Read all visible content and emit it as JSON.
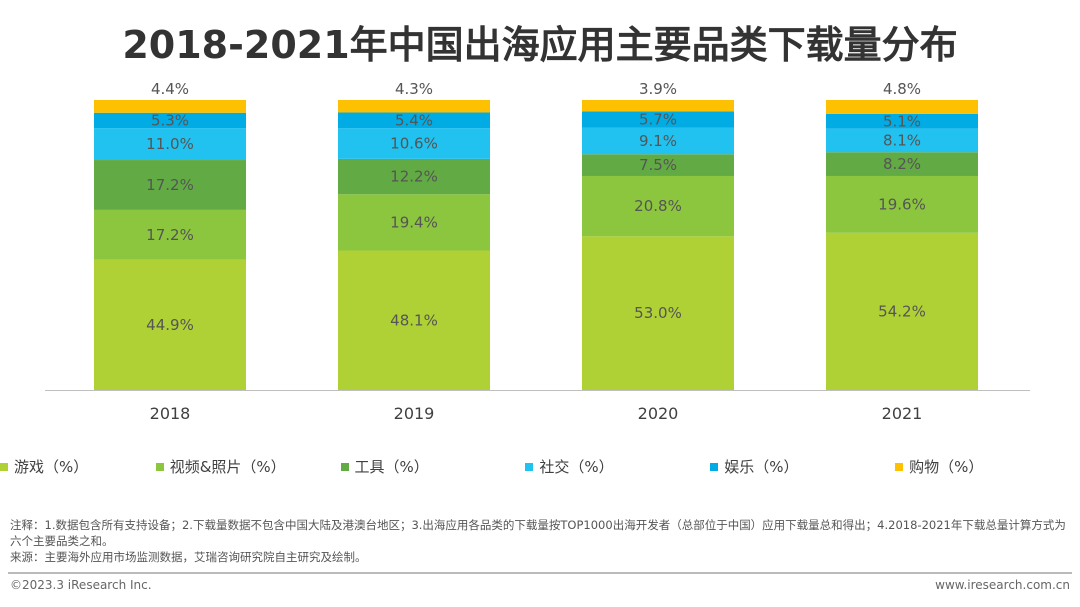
{
  "chart_data": {
    "type": "bar",
    "stacked": true,
    "title": "2018-2021年中国出海应用主要品类下载量分布",
    "categories": [
      "2018",
      "2019",
      "2020",
      "2021"
    ],
    "ylim": [
      0,
      100
    ],
    "grid": false,
    "legend_position": "bottom",
    "series": [
      {
        "name": "游戏（%）",
        "color": "#b0d136",
        "values": [
          44.9,
          48.1,
          53.0,
          54.2
        ]
      },
      {
        "name": "视频&照片（%）",
        "color": "#8cc63f",
        "values": [
          17.2,
          19.4,
          20.8,
          19.6
        ]
      },
      {
        "name": "工具（%）",
        "color": "#62ab44",
        "values": [
          17.2,
          12.2,
          7.5,
          8.2
        ]
      },
      {
        "name": "社交（%）",
        "color": "#21c2f0",
        "values": [
          11.0,
          10.6,
          9.1,
          8.1
        ]
      },
      {
        "name": "娱乐（%）",
        "color": "#01ace4",
        "values": [
          5.3,
          5.4,
          5.7,
          5.1
        ]
      },
      {
        "name": "购物（%）",
        "color": "#fdc101",
        "values": [
          4.4,
          4.3,
          3.9,
          4.8
        ]
      }
    ]
  },
  "notes": {
    "line1": "注释：1.数据包含所有支持设备；2.下载量数据不包含中国大陆及港澳台地区；3.出海应用各品类的下载量按TOP1000出海开发者（总部位于中国）应用下载量总和得出；4.2018-2021年下载总量计算方式为六个主要品类之和。",
    "source": "来源：主要海外应用市场监测数据，艾瑞咨询研究院自主研究及绘制。"
  },
  "footer": {
    "copyright": "©2023.3 iResearch Inc.",
    "website": "www.iresearch.com.cn"
  }
}
